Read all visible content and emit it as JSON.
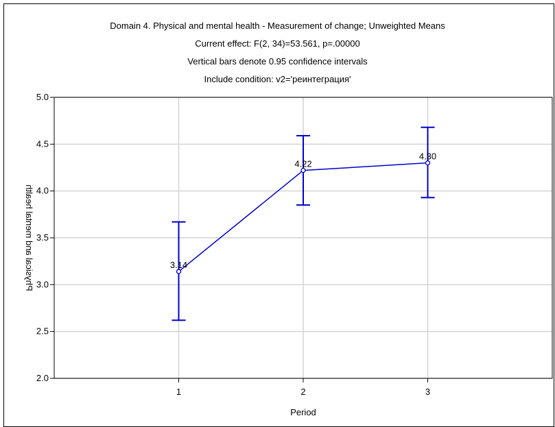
{
  "header": {
    "lines": [
      "Domain 4. Physical and mental health - Measurement of change; Unweighted Means",
      "Current effect: F(2, 34)=53.561, p=.00000",
      "Vertical bars denote 0.95 confidence intervals",
      "Include condition: v2='реинтеграция'"
    ]
  },
  "chart_data": {
    "type": "line",
    "title": "Domain 4. Physical and mental health - Measurement of change; Unweighted Means",
    "subtitle": [
      "Current effect: F(2, 34)=53.561, p=.00000",
      "Vertical bars denote 0.95 confidence intervals",
      "Include condition: v2='реинтеграция'"
    ],
    "xlabel": "Period",
    "ylabel": "Physical and mental health",
    "x": [
      1,
      2,
      3
    ],
    "xlim": [
      0,
      4
    ],
    "ylim": [
      2.0,
      5.0
    ],
    "xticks": [
      "1",
      "2",
      "3"
    ],
    "yticks": [
      "2.0",
      "2.5",
      "3.0",
      "3.5",
      "4.0",
      "4.5",
      "5.0"
    ],
    "grid": true,
    "series": [
      {
        "values": [
          3.14,
          4.22,
          4.3
        ],
        "ci_lower": [
          2.62,
          3.85,
          3.93
        ],
        "ci_upper": [
          3.67,
          4.59,
          4.68
        ],
        "labels": [
          "3.14",
          "4.22",
          "4.30"
        ],
        "color": "#0000cc"
      }
    ]
  }
}
